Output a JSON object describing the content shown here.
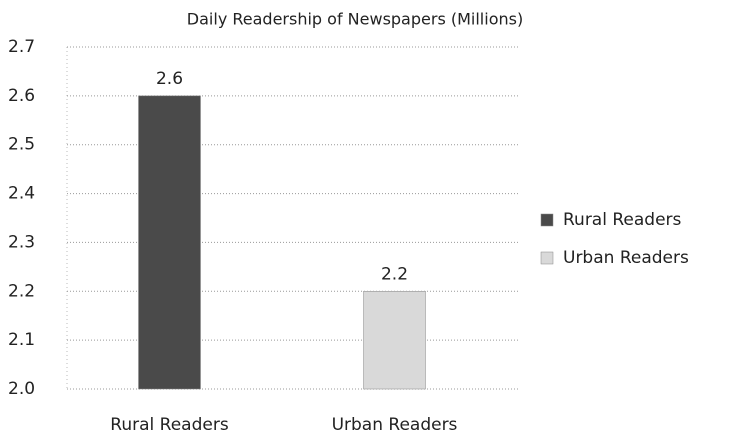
{
  "chart_data": {
    "type": "bar",
    "title": "Daily Readership of Newspapers (Millions)",
    "categories": [
      "Rural Readers",
      "Urban Readers"
    ],
    "series": [
      {
        "name": "Rural Readers",
        "color": "#4a4a4a",
        "values": [
          2.6,
          null
        ]
      },
      {
        "name": "Urban Readers",
        "color": "#d9d9d9",
        "values": [
          null,
          2.2
        ]
      }
    ],
    "ylim": [
      2.0,
      2.7
    ],
    "yticks": [
      {
        "value": 2,
        "label": "2.0"
      },
      2.1,
      2.2,
      2.3,
      2.4,
      2.5,
      2.6,
      2.7
    ],
    "grid": true,
    "legend": "right"
  }
}
